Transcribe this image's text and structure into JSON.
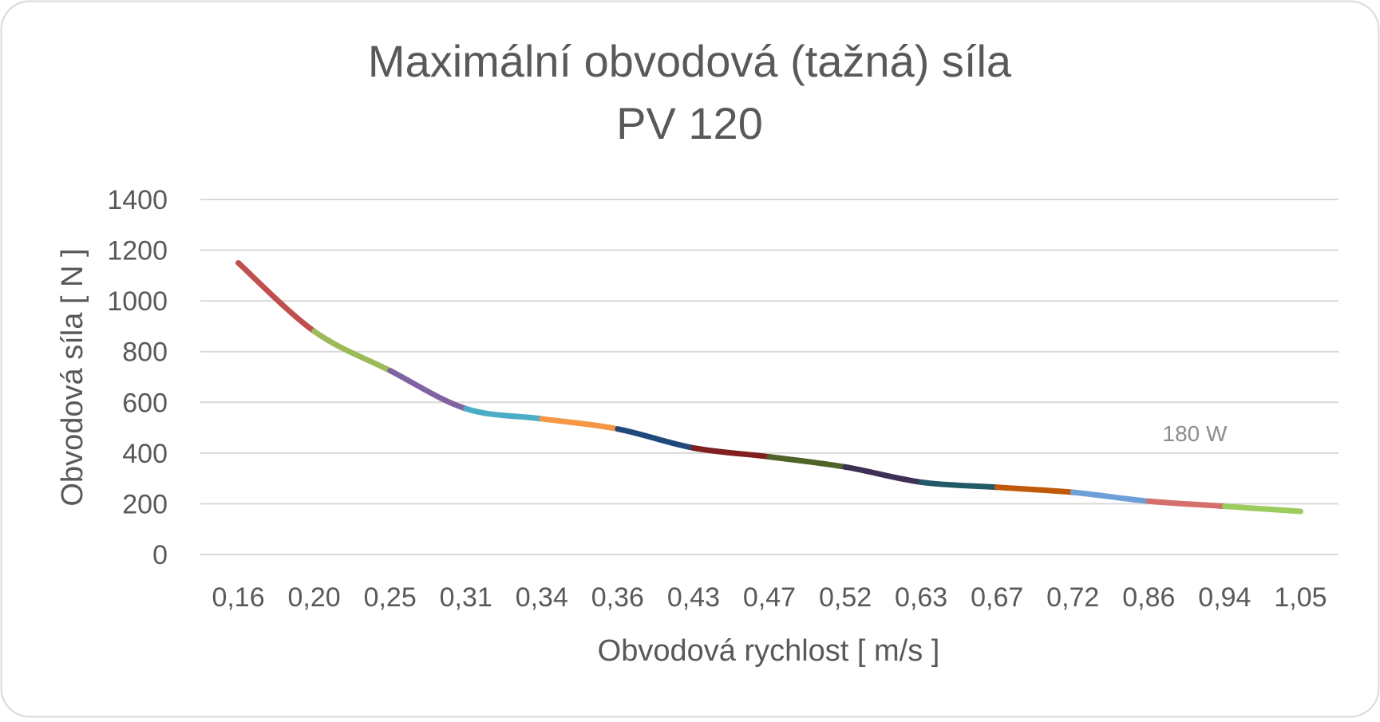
{
  "chart_data": {
    "type": "line",
    "title": [
      "Maximální obvodová (tažná) síla",
      "PV 120"
    ],
    "xlabel": "Obvodová rychlost  [ m/s ]",
    "ylabel": "Obvodová síla  [ N ]",
    "categories": [
      "0,16",
      "0,20",
      "0,25",
      "0,31",
      "0,34",
      "0,36",
      "0,43",
      "0,47",
      "0,52",
      "0,63",
      "0,67",
      "0,72",
      "0,86",
      "0,94",
      "1,05"
    ],
    "ylim": [
      0,
      1400
    ],
    "yticks": [
      "0",
      "200",
      "400",
      "600",
      "800",
      "1000",
      "1200",
      "1400"
    ],
    "grid": true,
    "series": [
      {
        "name": "180 W",
        "values": [
          1150,
          880,
          725,
          575,
          535,
          495,
          420,
          385,
          345,
          285,
          265,
          245,
          210,
          190,
          170
        ]
      }
    ],
    "segment_colors": [
      "#c0504d",
      "#9bbb59",
      "#8064a2",
      "#4bacc6",
      "#f79646",
      "#1f497d",
      "#7f1f1f",
      "#4f6228",
      "#3d3054",
      "#215967",
      "#c05a0a",
      "#6f9fd8",
      "#d46f6c",
      "#9ccb5e"
    ],
    "colors": {
      "grid": "#d9d9d9",
      "text": "#595959",
      "annotation": "#8c8c8c",
      "frame": "#d9d9d9"
    }
  }
}
